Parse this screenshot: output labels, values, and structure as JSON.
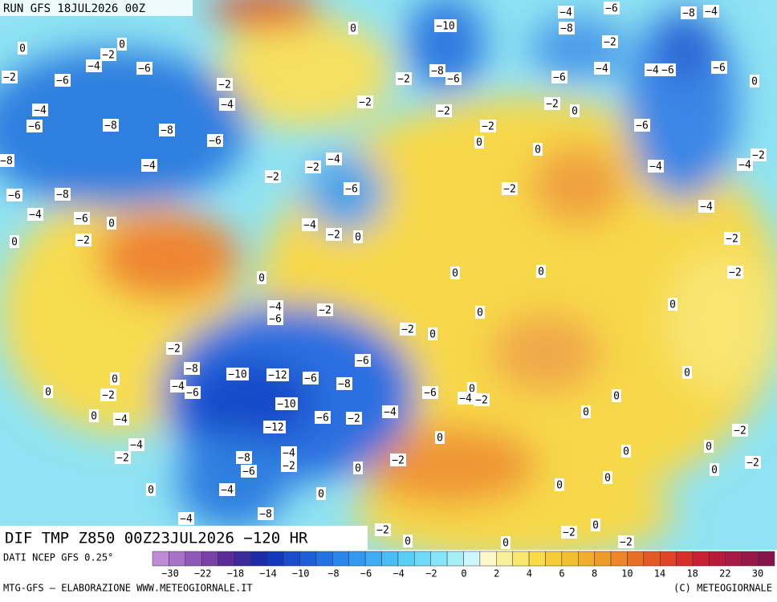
{
  "header": {
    "run": "RUN GFS 18JUL2026 00Z"
  },
  "map": {
    "title": "DIF TMP Z850 00Z23JUL2026 −120 HR",
    "labels": [
      "0",
      "−10",
      "−4",
      "−6",
      "−8",
      "−4",
      "−8",
      "−2",
      "0",
      "0",
      "−2",
      "−4",
      "−6",
      "−8",
      "−6",
      "−2",
      "−6",
      "−4",
      "−4",
      "−6",
      "−6",
      "0",
      "−2",
      "−6",
      "−2",
      "−4",
      "−2",
      "−4",
      "−2",
      "0",
      "−2",
      "−6",
      "−8",
      "−8",
      "−2",
      "−6",
      "−6",
      "0",
      "0",
      "−8",
      "−4",
      "−4",
      "−2",
      "−4",
      "−4",
      "−2",
      "−2",
      "−6",
      "−2",
      "−8",
      "−6",
      "−4",
      "−6",
      "0",
      "−4",
      "−4",
      "−2",
      "0",
      "−2",
      "0",
      "−2",
      "0",
      "0",
      "−2",
      "0",
      "−4",
      "−6",
      "−2",
      "0",
      "0",
      "−2",
      "0",
      "−2",
      "−6",
      "−8",
      "−10",
      "−12",
      "−6",
      "−8",
      "0",
      "0",
      "0",
      "−4",
      "−6",
      "−2",
      "−6",
      "0",
      "−10",
      "−4",
      "−2",
      "0",
      "0",
      "−4",
      "−6",
      "−2",
      "−4",
      "0",
      "−12",
      "−2",
      "0",
      "−4",
      "−2",
      "−8",
      "−4",
      "−2",
      "−2",
      "0",
      "0",
      "−2",
      "0",
      "−6",
      "0",
      "0",
      "0",
      "0",
      "−4",
      "0",
      "−4",
      "−8",
      "−2",
      "0",
      "−2",
      "0",
      "−2",
      "0"
    ]
  },
  "legend": {
    "source": "DATI NCEP GFS 0.25°",
    "colors": [
      "#c08ad8",
      "#a872c8",
      "#9058b8",
      "#7a40a8",
      "#5a2a98",
      "#3a2a9a",
      "#1c2ca8",
      "#1238bc",
      "#1a4ccc",
      "#1d5fd8",
      "#2372e2",
      "#2a86ea",
      "#3398ef",
      "#3eabf3",
      "#4bbdf5",
      "#5ccdf6",
      "#6edaf7",
      "#86e5f8",
      "#a6eef8",
      "#cff6fa",
      "#fbf7c8",
      "#fbf09a",
      "#f9e66c",
      "#f7db48",
      "#f5cd38",
      "#f3bf32",
      "#f1ae2e",
      "#ef9b2a",
      "#ec8628",
      "#e87026",
      "#e45a24",
      "#de4426",
      "#d43028",
      "#c82030",
      "#b81a3a",
      "#a81844",
      "#98184c",
      "#88144e"
    ],
    "ticks": [
      "−30",
      "−22",
      "−18",
      "−14",
      "−10",
      "−8",
      "−6",
      "−4",
      "−2",
      "0",
      "2",
      "4",
      "6",
      "8",
      "10",
      "14",
      "18",
      "22",
      "30"
    ]
  },
  "footer": {
    "credit": "MTG-GFS — ELABORAZIONE WWW.METEOGIORNALE.IT",
    "copyright": "(C) METEOGIORNALE"
  }
}
